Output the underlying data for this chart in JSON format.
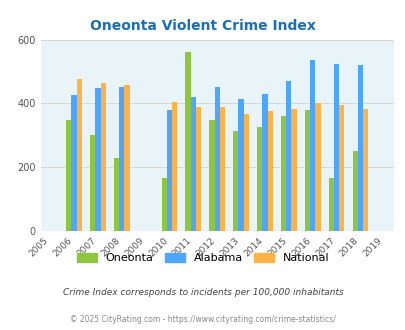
{
  "title": "Oneonta Violent Crime Index",
  "years": [
    2005,
    2006,
    2007,
    2008,
    2009,
    2010,
    2011,
    2012,
    2013,
    2014,
    2015,
    2016,
    2017,
    2018,
    2019
  ],
  "data_years": [
    2006,
    2007,
    2008,
    2010,
    2011,
    2012,
    2013,
    2014,
    2015,
    2016,
    2017,
    2018
  ],
  "oneonta": [
    348,
    302,
    228,
    165,
    560,
    348,
    312,
    325,
    362,
    378,
    165,
    252
  ],
  "alabama": [
    425,
    448,
    452,
    380,
    420,
    450,
    415,
    428,
    470,
    535,
    525,
    520
  ],
  "national": [
    475,
    465,
    458,
    405,
    390,
    390,
    368,
    375,
    383,
    400,
    396,
    384
  ],
  "oneonta_color": "#8dc63f",
  "alabama_color": "#4da6ff",
  "national_color": "#ffb347",
  "bg_color": "#e8f4f8",
  "title_color": "#1a6eb5",
  "subtitle": "Crime Index corresponds to incidents per 100,000 inhabitants",
  "footer": "© 2025 CityRating.com - https://www.cityrating.com/crime-statistics/",
  "ylim": [
    0,
    600
  ],
  "yticks": [
    0,
    200,
    400,
    600
  ],
  "bar_width": 0.22,
  "legend_labels": [
    "Oneonta",
    "Alabama",
    "National"
  ]
}
